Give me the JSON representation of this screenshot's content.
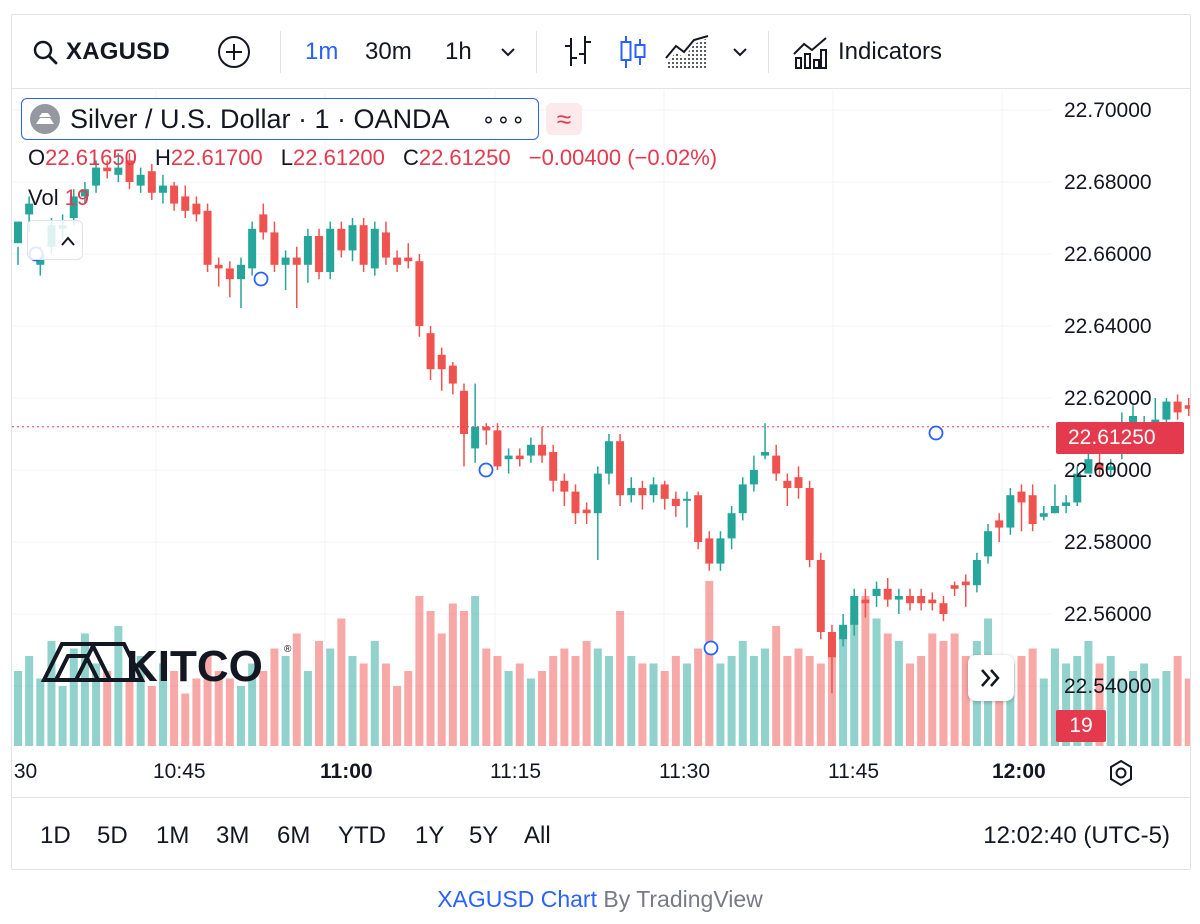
{
  "toolbar": {
    "symbol": "XAGUSD",
    "timeframes": [
      "1m",
      "30m",
      "1h"
    ],
    "active_timeframe": "1m",
    "indicators_label": "Indicators",
    "icons": [
      "search-icon",
      "add-icon",
      "chevron-down-icon",
      "bar-chart-icon",
      "candles-icon",
      "area-chart-icon",
      "indicators-icon"
    ]
  },
  "legend": {
    "title": "Silver / U.S. Dollar · 1 · OANDA",
    "more": "∘∘∘",
    "approx": "≈",
    "o_label": "O",
    "o_value": "22.61650",
    "h_label": "H",
    "h_value": "22.61700",
    "l_label": "L",
    "l_value": "22.61200",
    "c_label": "C",
    "c_value": "22.61250",
    "change": "−0.00400 (−0.02%)",
    "vol_label": "Vol",
    "vol_value": "19"
  },
  "price_scale": {
    "labels": [
      "22.70000",
      "22.68000",
      "22.66000",
      "22.64000",
      "22.62000",
      "22.60000",
      "22.58000",
      "22.56000",
      "22.54000"
    ],
    "last_price": "22.61250",
    "last_volume": "19"
  },
  "time_axis": {
    "labels": [
      ":30",
      "10:45",
      "11:00",
      "11:15",
      "11:30",
      "11:45",
      "12:00"
    ]
  },
  "ranges": [
    "1D",
    "5D",
    "1M",
    "3M",
    "6M",
    "YTD",
    "1Y",
    "5Y",
    "All"
  ],
  "clock": "12:02:40 (UTC-5)",
  "footer": {
    "link": "XAGUSD Chart",
    "by": " By TradingView"
  },
  "colors": {
    "up": "#26a69a",
    "down": "#ef5350",
    "accent": "#2962ff",
    "price_tag": "#e5394d"
  },
  "chart_data": {
    "type": "candlestick",
    "yrange": [
      22.54,
      22.7
    ],
    "candles": [
      [
        22.663,
        22.669,
        22.662,
        22.657,
        10
      ],
      [
        22.671,
        22.674,
        22.676,
        22.666,
        12
      ],
      [
        22.657,
        22.66,
        22.662,
        22.654,
        9
      ],
      [
        22.662,
        22.668,
        22.67,
        22.66,
        14
      ],
      [
        22.667,
        22.668,
        22.671,
        22.664,
        8
      ],
      [
        22.67,
        22.676,
        22.678,
        22.668,
        13
      ],
      [
        22.676,
        22.678,
        22.68,
        22.674,
        15
      ],
      [
        22.679,
        22.684,
        22.686,
        22.677,
        11
      ],
      [
        22.684,
        22.683,
        22.686,
        22.681,
        10
      ],
      [
        22.682,
        22.684,
        22.688,
        22.68,
        16
      ],
      [
        22.686,
        22.68,
        22.688,
        22.678,
        9
      ],
      [
        22.679,
        22.682,
        22.684,
        22.677,
        12
      ],
      [
        22.683,
        22.677,
        22.685,
        22.675,
        8
      ],
      [
        22.677,
        22.679,
        22.682,
        22.674,
        11
      ],
      [
        22.679,
        22.674,
        22.68,
        22.672,
        10
      ],
      [
        22.676,
        22.672,
        22.679,
        22.67,
        7
      ],
      [
        22.674,
        22.671,
        22.676,
        22.669,
        9
      ],
      [
        22.672,
        22.657,
        22.674,
        22.655,
        12
      ],
      [
        22.657,
        22.656,
        22.659,
        22.651,
        10
      ],
      [
        22.656,
        22.653,
        22.658,
        22.648,
        9
      ],
      [
        22.653,
        22.657,
        22.659,
        22.645,
        8
      ],
      [
        22.656,
        22.667,
        22.669,
        22.654,
        11
      ],
      [
        22.671,
        22.666,
        22.674,
        22.664,
        10
      ],
      [
        22.666,
        22.657,
        22.669,
        22.655,
        13
      ],
      [
        22.657,
        22.659,
        22.661,
        22.65,
        12
      ],
      [
        22.659,
        22.657,
        22.662,
        22.645,
        15
      ],
      [
        22.657,
        22.665,
        22.667,
        22.652,
        10
      ],
      [
        22.665,
        22.655,
        22.667,
        22.653,
        14
      ],
      [
        22.655,
        22.667,
        22.669,
        22.653,
        13
      ],
      [
        22.667,
        22.661,
        22.669,
        22.659,
        17
      ],
      [
        22.661,
        22.668,
        22.67,
        22.658,
        12
      ],
      [
        22.668,
        22.657,
        22.67,
        22.655,
        11
      ],
      [
        22.656,
        22.667,
        22.669,
        22.654,
        14
      ],
      [
        22.666,
        22.659,
        22.669,
        22.657,
        11
      ],
      [
        22.659,
        22.657,
        22.661,
        22.655,
        8
      ],
      [
        22.659,
        22.658,
        22.663,
        22.656,
        10
      ],
      [
        22.658,
        22.64,
        22.66,
        22.637,
        20
      ],
      [
        22.638,
        22.628,
        22.64,
        22.625,
        18
      ],
      [
        22.632,
        22.628,
        22.634,
        22.622,
        15
      ],
      [
        22.629,
        22.624,
        22.63,
        22.621,
        19
      ],
      [
        22.622,
        22.61,
        22.624,
        22.601,
        18
      ],
      [
        22.606,
        22.612,
        22.624,
        22.602,
        20
      ],
      [
        22.612,
        22.611,
        22.613,
        22.607,
        13
      ],
      [
        22.611,
        22.601,
        22.613,
        22.6,
        12
      ],
      [
        22.603,
        22.604,
        22.606,
        22.599,
        10
      ],
      [
        22.604,
        22.603,
        22.606,
        22.601,
        11
      ],
      [
        22.604,
        22.607,
        22.609,
        22.602,
        9
      ],
      [
        22.607,
        22.604,
        22.612,
        22.602,
        10
      ],
      [
        22.605,
        22.597,
        22.607,
        22.594,
        12
      ],
      [
        22.597,
        22.594,
        22.599,
        22.59,
        13
      ],
      [
        22.594,
        22.588,
        22.596,
        22.585,
        12
      ],
      [
        22.589,
        22.588,
        22.591,
        22.585,
        14
      ],
      [
        22.588,
        22.599,
        22.601,
        22.575,
        13
      ],
      [
        22.599,
        22.608,
        22.61,
        22.596,
        12
      ],
      [
        22.608,
        22.593,
        22.61,
        22.59,
        18
      ],
      [
        22.593,
        22.595,
        22.598,
        22.591,
        12
      ],
      [
        22.595,
        22.593,
        22.597,
        22.589,
        11
      ],
      [
        22.593,
        22.596,
        22.598,
        22.591,
        11
      ],
      [
        22.596,
        22.592,
        22.597,
        22.589,
        10
      ],
      [
        22.592,
        22.59,
        22.594,
        22.587,
        12
      ],
      [
        22.592,
        22.592,
        22.594,
        22.584,
        11
      ],
      [
        22.593,
        22.58,
        22.594,
        22.578,
        13
      ],
      [
        22.581,
        22.574,
        22.583,
        22.572,
        22
      ],
      [
        22.574,
        22.581,
        22.583,
        22.572,
        11
      ],
      [
        22.581,
        22.588,
        22.59,
        22.578,
        12
      ],
      [
        22.588,
        22.596,
        22.598,
        22.586,
        14
      ],
      [
        22.596,
        22.6,
        22.604,
        22.594,
        12
      ],
      [
        22.604,
        22.605,
        22.613,
        22.603,
        13
      ],
      [
        22.604,
        22.599,
        22.607,
        22.597,
        16
      ],
      [
        22.597,
        22.595,
        22.599,
        22.59,
        12
      ],
      [
        22.598,
        22.595,
        22.601,
        22.592,
        13
      ],
      [
        22.595,
        22.575,
        22.597,
        22.573,
        12
      ],
      [
        22.575,
        22.555,
        22.577,
        22.553,
        11
      ],
      [
        22.555,
        22.548,
        22.557,
        22.538,
        14
      ],
      [
        22.553,
        22.557,
        22.56,
        22.551,
        16
      ],
      [
        22.557,
        22.565,
        22.567,
        22.554,
        17
      ],
      [
        22.564,
        22.563,
        22.567,
        22.559,
        20
      ],
      [
        22.565,
        22.567,
        22.569,
        22.562,
        17
      ],
      [
        22.567,
        22.564,
        22.57,
        22.562,
        15
      ],
      [
        22.564,
        22.565,
        22.567,
        22.56,
        14
      ],
      [
        22.565,
        22.563,
        22.567,
        22.561,
        11
      ],
      [
        22.565,
        22.563,
        22.567,
        22.561,
        12
      ],
      [
        22.564,
        22.563,
        22.566,
        22.561,
        15
      ],
      [
        22.563,
        22.56,
        22.565,
        22.558,
        14
      ],
      [
        22.568,
        22.567,
        22.569,
        22.565,
        15
      ],
      [
        22.569,
        22.568,
        22.571,
        22.562,
        12
      ],
      [
        22.568,
        22.575,
        22.577,
        22.566,
        14
      ],
      [
        22.576,
        22.583,
        22.585,
        22.574,
        17
      ],
      [
        22.586,
        22.584,
        22.588,
        22.58,
        12
      ],
      [
        22.584,
        22.593,
        22.595,
        22.582,
        11
      ],
      [
        22.594,
        22.591,
        22.596,
        22.583,
        12
      ],
      [
        22.593,
        22.585,
        22.596,
        22.583,
        13
      ],
      [
        22.587,
        22.588,
        22.59,
        22.586,
        9
      ],
      [
        22.588,
        22.59,
        22.596,
        22.588,
        13
      ],
      [
        22.59,
        22.591,
        22.593,
        22.588,
        11
      ],
      [
        22.591,
        22.599,
        22.601,
        22.59,
        12
      ],
      [
        22.599,
        22.603,
        22.605,
        22.599,
        14
      ],
      [
        22.602,
        22.6,
        22.605,
        22.598,
        11
      ],
      [
        22.6,
        22.601,
        22.603,
        22.598,
        12
      ],
      [
        22.605,
        22.613,
        22.616,
        22.603,
        9
      ],
      [
        22.612,
        22.615,
        22.618,
        22.61,
        10
      ],
      [
        22.613,
        22.613,
        22.615,
        22.611,
        11
      ],
      [
        22.612,
        22.614,
        22.62,
        22.61,
        9
      ],
      [
        22.614,
        22.619,
        22.62,
        22.613,
        10
      ],
      [
        22.619,
        22.616,
        22.621,
        22.614,
        12
      ],
      [
        22.618,
        22.617,
        22.62,
        22.615,
        9
      ],
      [
        22.617,
        22.616,
        22.619,
        22.614,
        8
      ],
      [
        22.616,
        22.617,
        22.619,
        22.614,
        9
      ],
      [
        22.618,
        22.617,
        22.619,
        22.615,
        10
      ],
      [
        22.617,
        22.616,
        22.619,
        22.613,
        11
      ],
      [
        22.616,
        22.613,
        22.621,
        22.612,
        12
      ],
      [
        22.616,
        22.612,
        22.617,
        22.612,
        19
      ]
    ]
  }
}
